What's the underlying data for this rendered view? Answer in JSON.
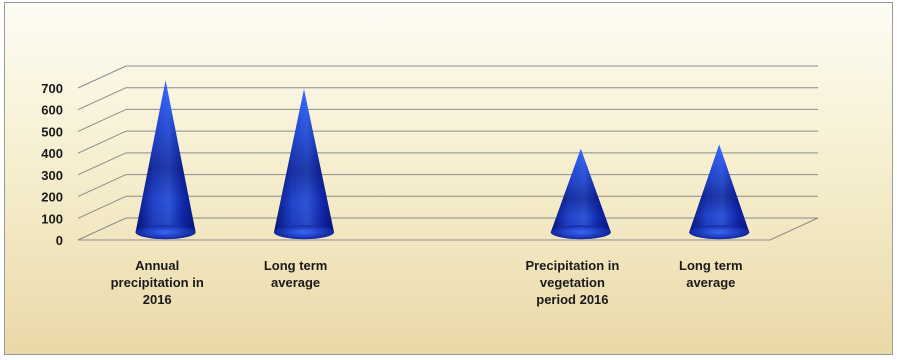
{
  "chart_data": {
    "type": "bar",
    "subtype": "3d-cone",
    "title": "",
    "xlabel": "",
    "ylabel": "",
    "ylim": [
      0,
      700
    ],
    "y_ticks": [
      0,
      100,
      200,
      300,
      400,
      500,
      600,
      700
    ],
    "grid": true,
    "legend": "none",
    "categories": [
      [
        "Annual",
        "precipitation in",
        "2016"
      ],
      [
        "Long term",
        "average"
      ],
      [
        "Precipitation in",
        "vegetation",
        "period 2016"
      ],
      [
        "Long term",
        "average"
      ]
    ],
    "category_slots": [
      0,
      1,
      3,
      4
    ],
    "slot_count": 5,
    "values": [
      690,
      650,
      375,
      395
    ],
    "colors": {
      "cone_dark": "#0a1a8c",
      "cone_light": "#3a6bff",
      "cone_mid": "#1432c8",
      "grid": "#8c8c8c"
    }
  }
}
